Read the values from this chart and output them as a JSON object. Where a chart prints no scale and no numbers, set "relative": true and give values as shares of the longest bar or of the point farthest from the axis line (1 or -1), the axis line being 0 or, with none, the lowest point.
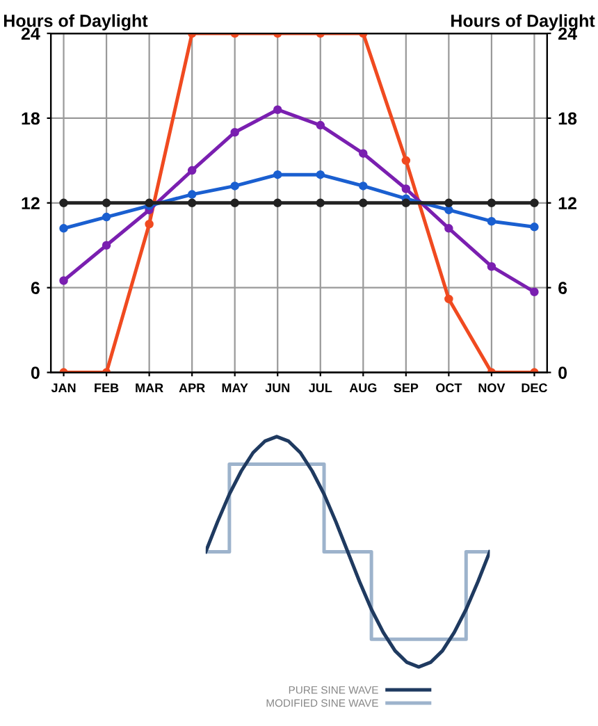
{
  "chart_data": [
    {
      "type": "line",
      "ylabel": "Hours of Daylight",
      "y2label": "Hours of Daylight",
      "categories": [
        "JAN",
        "FEB",
        "MAR",
        "APR",
        "MAY",
        "JUN",
        "JUL",
        "AUG",
        "SEP",
        "OCT",
        "NOV",
        "DEC"
      ],
      "ylim": [
        0,
        24
      ],
      "yticks": [
        0,
        6,
        12,
        18,
        24
      ],
      "y2lim": [
        0,
        24
      ],
      "y2ticks": [
        0,
        6,
        12,
        18,
        24
      ],
      "grid": true,
      "marker": "circle",
      "line_style": "solid",
      "series": [
        {
          "color": "#222222",
          "values": [
            12,
            12,
            12,
            12,
            12,
            12,
            12,
            12,
            12,
            12,
            12,
            12
          ]
        },
        {
          "color": "#1a5fd0",
          "values": [
            10.2,
            11,
            11.8,
            12.6,
            13.2,
            14,
            14,
            13.2,
            12.3,
            11.5,
            10.7,
            10.3
          ]
        },
        {
          "color": "#7a1fb0",
          "values": [
            6.5,
            9,
            11.5,
            14.3,
            17,
            18.6,
            17.5,
            15.5,
            13,
            10.2,
            7.5,
            5.7
          ]
        },
        {
          "color": "#f04a20",
          "values": [
            0,
            0,
            10.5,
            24,
            24,
            24,
            24,
            24,
            15,
            5.2,
            0,
            0
          ]
        }
      ]
    },
    {
      "type": "line",
      "relative": true,
      "categories": [
        null,
        null,
        null,
        null,
        null,
        null,
        null,
        null,
        null,
        null,
        null,
        null,
        null,
        null,
        null,
        null,
        null,
        null,
        null,
        null,
        null,
        null,
        null,
        null,
        null
      ],
      "grid": false,
      "legend": "bottom",
      "series": [
        {
          "name": "PURE SINE WAVE",
          "color": "#1f3a60",
          "values": [
            0.5,
            0.63,
            0.75,
            0.85,
            0.93,
            0.98,
            1,
            0.98,
            0.93,
            0.85,
            0.75,
            0.63,
            0.5,
            0.37,
            0.25,
            0.15,
            0.07,
            0.02,
            0,
            0.02,
            0.07,
            0.15,
            0.25,
            0.37,
            0.5
          ]
        },
        {
          "name": "MODIFIED SINE WAVE",
          "type": "step",
          "color": "#9db3cc",
          "values": [
            0.5,
            0.5,
            0.88,
            0.88,
            0.88,
            0.88,
            0.88,
            0.88,
            0.88,
            0.88,
            0.5,
            0.5,
            0.5,
            0.5,
            0.12,
            0.12,
            0.12,
            0.12,
            0.12,
            0.12,
            0.12,
            0.12,
            0.5,
            0.5,
            0.5
          ]
        }
      ]
    }
  ]
}
